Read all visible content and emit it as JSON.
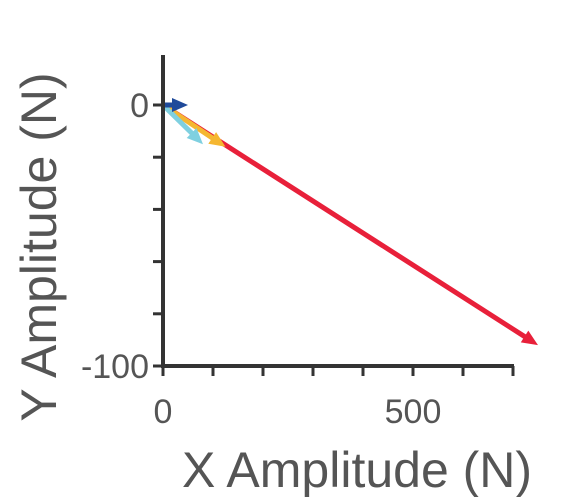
{
  "chart_data": {
    "type": "vector",
    "title": "",
    "xlabel": "X Amplitude (N)",
    "ylabel": "Y Amplitude (N)",
    "xlim": [
      0,
      750
    ],
    "ylim": [
      -100,
      20
    ],
    "x_tick_values": [
      0,
      100,
      200,
      300,
      400,
      500,
      600,
      700
    ],
    "x_tick_labels": [
      {
        "value": 0,
        "text": "0"
      },
      {
        "value": 500,
        "text": "500"
      }
    ],
    "y_tick_values": [
      0,
      -20,
      -40,
      -60,
      -80,
      -100
    ],
    "y_tick_labels": [
      {
        "value": 0,
        "text": "0"
      },
      {
        "value": -100,
        "text": "-100"
      }
    ],
    "grid": false,
    "legend": false,
    "series": [
      {
        "color": "#e8203a",
        "from": [
          0,
          0
        ],
        "to": [
          750,
          -92
        ]
      },
      {
        "color": "#f5b731",
        "from": [
          0,
          0
        ],
        "to": [
          125,
          -16
        ]
      },
      {
        "color": "#7fd0e0",
        "from": [
          0,
          0
        ],
        "to": [
          80,
          -15
        ]
      },
      {
        "color": "#1f4a9a",
        "from": [
          0,
          0
        ],
        "to": [
          50,
          0
        ]
      }
    ]
  }
}
